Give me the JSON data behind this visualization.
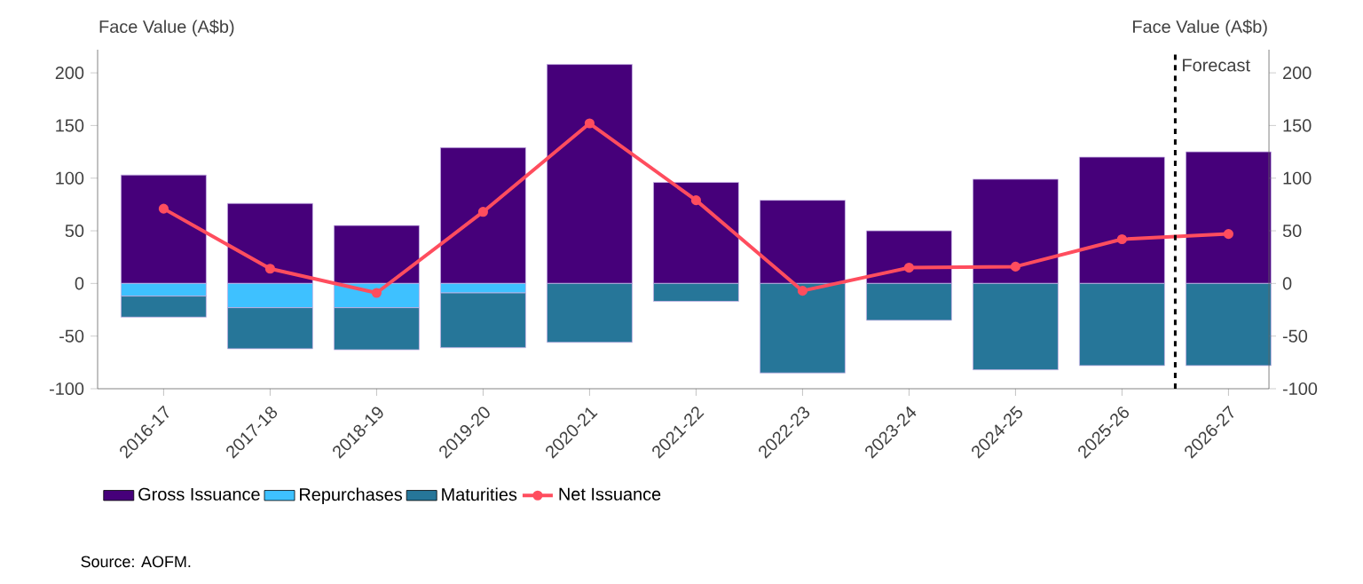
{
  "chart_data": {
    "type": "bar",
    "stacked": true,
    "categories": [
      "2016-17",
      "2017-18",
      "2018-19",
      "2019-20",
      "2020-21",
      "2021-22",
      "2022-23",
      "2023-24",
      "2024-25",
      "2025-26",
      "2026-27"
    ],
    "series": [
      {
        "name": "Gross Issuance",
        "color": "#46007a",
        "values": [
          103,
          76,
          55,
          129,
          208,
          96,
          79,
          50,
          99,
          120,
          125
        ]
      },
      {
        "name": "Repurchases",
        "color": "#3ec1ff",
        "values": [
          -12,
          -23,
          -23,
          -9,
          null,
          null,
          null,
          null,
          null,
          null,
          null
        ]
      },
      {
        "name": "Maturities",
        "color": "#267699",
        "values": [
          -20,
          -39,
          -40,
          -52,
          -56,
          -17,
          -85,
          -35,
          -82,
          -78,
          -78
        ]
      },
      {
        "name": "Net Issuance",
        "type": "line",
        "color": "#ff4d5e",
        "marker": "circle",
        "values": [
          71,
          14,
          -9,
          68,
          152,
          79,
          -7,
          15,
          16,
          42,
          47
        ]
      }
    ],
    "ylabel": "Face Value (A$b)",
    "y2label": "Face Value (A$b)",
    "ylim": [
      -100,
      222
    ],
    "yticks": [
      -100,
      -50,
      0,
      50,
      100,
      150,
      200
    ],
    "y2lim": [
      -100,
      222
    ],
    "y2ticks": [
      -100,
      -50,
      0,
      50,
      100,
      150,
      200
    ],
    "legend": "bottom",
    "annotations": [
      "Forecast",
      "Source: AOFM."
    ]
  }
}
